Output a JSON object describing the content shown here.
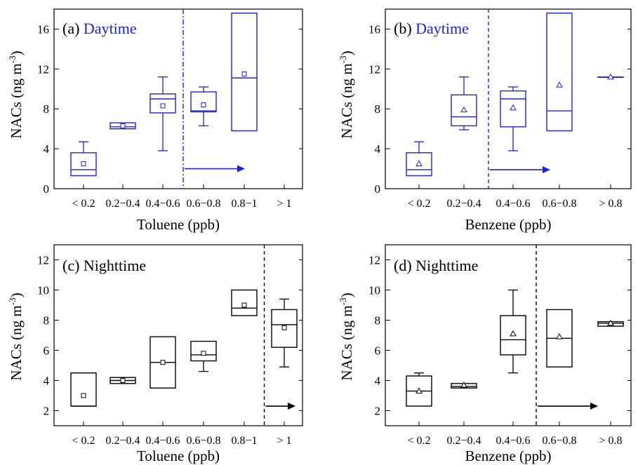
{
  "chart_data": [
    {
      "type": "box",
      "panel_label": "(a)",
      "panel_title": "Daytime",
      "title_color": "#1f1fe0",
      "color": "#1f1fe0",
      "mean_marker": "square",
      "xlabel": "Toluene (ppb)",
      "ylabel_main": "NACs (ng m",
      "ylabel_sup": "-3",
      "ylabel_close": ")",
      "ylim": [
        0,
        18
      ],
      "yticks": [
        0,
        4,
        8,
        12,
        16
      ],
      "categories": [
        "< 0.2",
        "0.2−0.4",
        "0.4−0.6",
        "0.6−0.8",
        "0.8−1",
        "> 1"
      ],
      "boxes": [
        {
          "q1": 1.3,
          "median": 1.9,
          "q3": 3.6,
          "whisker_low": 1.3,
          "whisker_high": 4.7,
          "mean": 2.5
        },
        {
          "q1": 6.0,
          "median": 6.2,
          "q3": 6.6,
          "whisker_low": 6.0,
          "whisker_high": 6.6,
          "mean": 6.3
        },
        {
          "q1": 7.6,
          "median": 9.0,
          "q3": 9.5,
          "whisker_low": 3.8,
          "whisker_high": 11.2,
          "mean": 8.3
        },
        {
          "q1": 7.7,
          "median": 7.8,
          "q3": 9.7,
          "whisker_low": 6.3,
          "whisker_high": 10.2,
          "mean": 8.4
        },
        {
          "q1": 5.8,
          "median": 11.1,
          "q3": 17.6,
          "whisker_low": 5.8,
          "whisker_high": 17.6,
          "mean": 11.5
        },
        null
      ],
      "divider_after_category": 2,
      "divider_style": "dash-dot",
      "arrow_y": 2.0
    },
    {
      "type": "box",
      "panel_label": "(b)",
      "panel_title": "Daytime",
      "title_color": "#1f1fe0",
      "color": "#1f1fe0",
      "mean_marker": "triangle",
      "xlabel": "Benzene (ppb)",
      "ylabel_main": "NACs (ng m",
      "ylabel_sup": "-3",
      "ylabel_close": ")",
      "ylim": [
        0,
        18
      ],
      "yticks": [
        0,
        4,
        8,
        12,
        16
      ],
      "categories": [
        "< 0.2",
        "0.2−0.4",
        "0.4−0.6",
        "0.6−0.8",
        "> 0.8"
      ],
      "boxes": [
        {
          "q1": 1.3,
          "median": 1.9,
          "q3": 3.6,
          "whisker_low": 1.3,
          "whisker_high": 4.7,
          "mean": 2.5
        },
        {
          "q1": 6.3,
          "median": 7.2,
          "q3": 9.4,
          "whisker_low": 5.9,
          "whisker_high": 11.2,
          "mean": 7.9
        },
        {
          "q1": 6.2,
          "median": 9.0,
          "q3": 9.8,
          "whisker_low": 3.8,
          "whisker_high": 10.2,
          "mean": 8.1
        },
        {
          "q1": 5.8,
          "median": 7.8,
          "q3": 17.6,
          "whisker_low": 5.8,
          "whisker_high": 17.6,
          "mean": 10.4
        },
        {
          "q1": 11.2,
          "median": 11.2,
          "q3": 11.2,
          "whisker_low": 11.2,
          "whisker_high": 11.2,
          "mean": 11.2
        }
      ],
      "divider_after_category": 1,
      "divider_style": "dash",
      "arrow_y": 1.9
    },
    {
      "type": "box",
      "panel_label": "(c)",
      "panel_title": "Nighttime",
      "title_color": "#000000",
      "color": "#000000",
      "mean_marker": "square",
      "xlabel": "Toluene (ppb)",
      "ylabel_main": "NACs (ng m",
      "ylabel_sup": "-3",
      "ylabel_close": ")",
      "ylim": [
        1,
        13
      ],
      "yticks": [
        2,
        4,
        6,
        8,
        10,
        12
      ],
      "categories": [
        "< 0.2",
        "0.2−0.4",
        "0.4−0.6",
        "0.6−0.8",
        "0.8−1",
        "> 1"
      ],
      "boxes": [
        {
          "q1": 2.3,
          "median": 2.3,
          "q3": 4.5,
          "whisker_low": 2.3,
          "whisker_high": 4.5,
          "mean": 3.0
        },
        {
          "q1": 3.8,
          "median": 4.0,
          "q3": 4.2,
          "whisker_low": 3.8,
          "whisker_high": 4.2,
          "mean": 4.0
        },
        {
          "q1": 3.5,
          "median": 5.2,
          "q3": 6.9,
          "whisker_low": 3.5,
          "whisker_high": 6.9,
          "mean": 5.2
        },
        {
          "q1": 5.3,
          "median": 5.7,
          "q3": 6.6,
          "whisker_low": 4.6,
          "whisker_high": 6.6,
          "mean": 5.8
        },
        {
          "q1": 8.3,
          "median": 8.8,
          "q3": 10.0,
          "whisker_low": 8.3,
          "whisker_high": 10.0,
          "mean": 9.0
        },
        {
          "q1": 6.2,
          "median": 7.7,
          "q3": 8.7,
          "whisker_low": 4.9,
          "whisker_high": 9.4,
          "mean": 7.5
        }
      ],
      "divider_after_category": 4,
      "divider_style": "dash",
      "arrow_y": 2.3
    },
    {
      "type": "box",
      "panel_label": "(d)",
      "panel_title": "Nighttime",
      "title_color": "#000000",
      "color": "#000000",
      "mean_marker": "triangle",
      "xlabel": "Benzene (ppb)",
      "ylabel_main": "NACs (ng m",
      "ylabel_sup": "-3",
      "ylabel_close": ")",
      "ylim": [
        1,
        13
      ],
      "yticks": [
        2,
        4,
        6,
        8,
        10,
        12
      ],
      "categories": [
        "< 0.2",
        "0.2−0.4",
        "0.4−0.6",
        "0.6−0.8",
        "> 0.8"
      ],
      "boxes": [
        {
          "q1": 2.3,
          "median": 3.3,
          "q3": 4.3,
          "whisker_low": 2.3,
          "whisker_high": 4.5,
          "mean": 3.3
        },
        {
          "q1": 3.5,
          "median": 3.6,
          "q3": 3.8,
          "whisker_low": 3.5,
          "whisker_high": 3.8,
          "mean": 3.7
        },
        {
          "q1": 5.7,
          "median": 6.7,
          "q3": 8.3,
          "whisker_low": 4.5,
          "whisker_high": 10.0,
          "mean": 7.1
        },
        {
          "q1": 4.9,
          "median": 6.8,
          "q3": 8.7,
          "whisker_low": 4.9,
          "whisker_high": 8.7,
          "mean": 6.9
        },
        {
          "q1": 7.6,
          "median": 7.8,
          "q3": 7.9,
          "whisker_low": 7.6,
          "whisker_high": 7.9,
          "mean": 7.8
        }
      ],
      "divider_after_category": 2,
      "divider_style": "dash",
      "arrow_y": 2.3
    }
  ]
}
